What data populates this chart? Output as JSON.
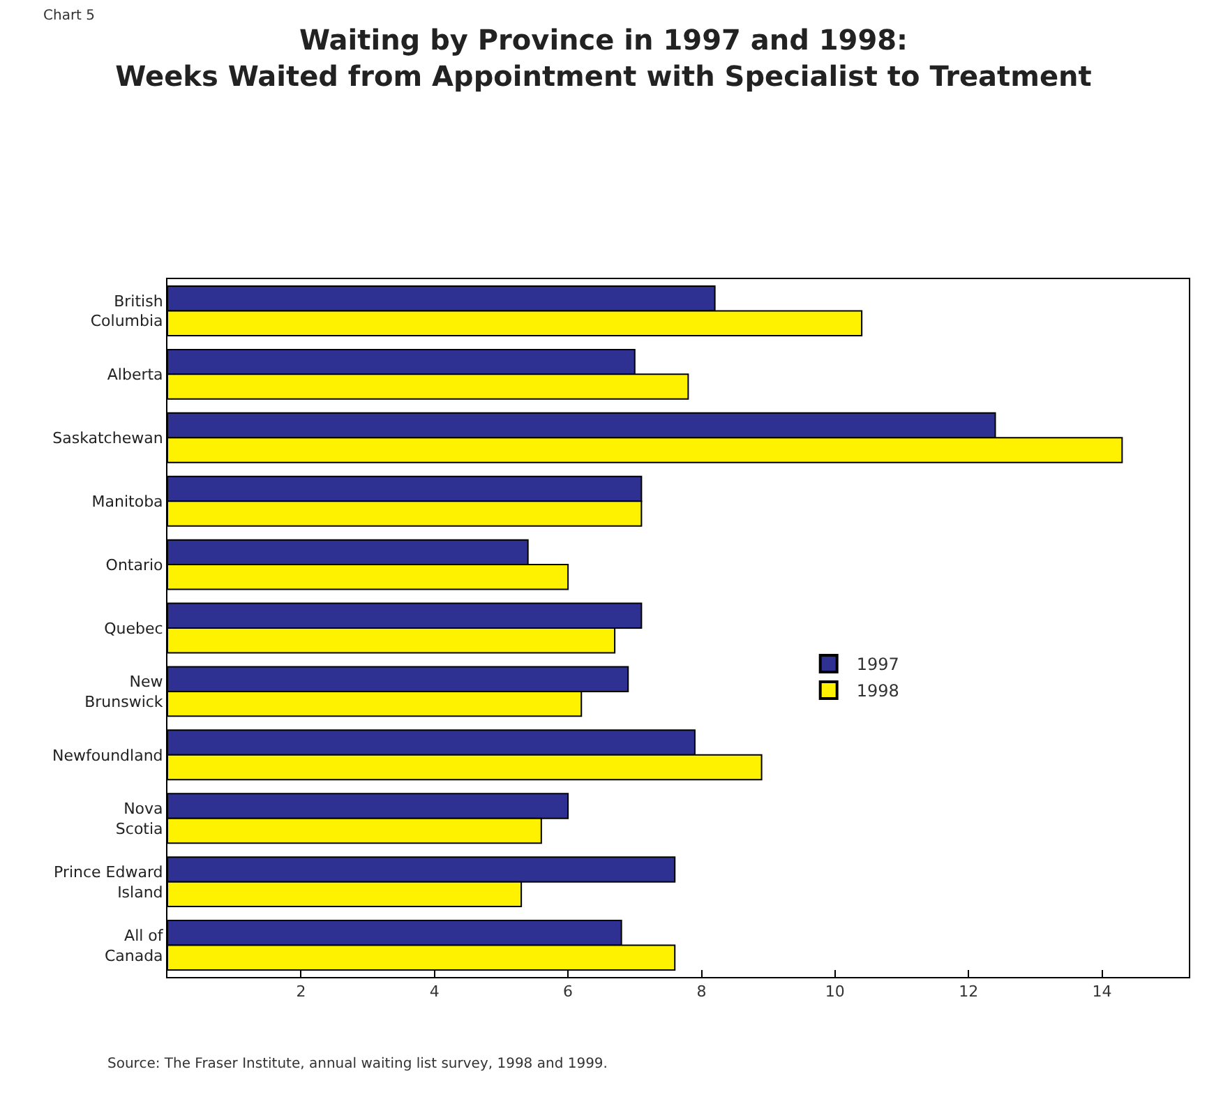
{
  "chart_data": {
    "type": "bar",
    "orientation": "horizontal",
    "title": "Waiting by Province in 1997 and 1998:\nWeeks Waited from Appointment with Specialist to Treatment",
    "categories": [
      "British\nColumbia",
      "Alberta",
      "Saskatchewan",
      "Manitoba",
      "Ontario",
      "Quebec",
      "New\nBrunswick",
      "Newfoundland",
      "Nova\nScotia",
      "Prince Edward\nIsland",
      "All of\nCanada"
    ],
    "series": [
      {
        "name": "1997",
        "color": "#2e3192",
        "values": [
          8.2,
          7.0,
          12.4,
          7.1,
          5.4,
          7.1,
          6.9,
          7.9,
          6.0,
          7.6,
          6.8
        ]
      },
      {
        "name": "1998",
        "color": "#fff200",
        "values": [
          10.4,
          7.8,
          14.3,
          7.1,
          6.0,
          6.7,
          6.2,
          8.9,
          5.6,
          5.3,
          7.6
        ]
      }
    ],
    "xlim": [
      0,
      15.3
    ],
    "xticks": [
      2,
      4,
      6,
      8,
      10,
      12,
      14
    ],
    "legend": "right",
    "annotations": [
      "Chart 5",
      "Source: The Fraser Institute, annual waiting list survey, 1998 and 1999."
    ]
  }
}
